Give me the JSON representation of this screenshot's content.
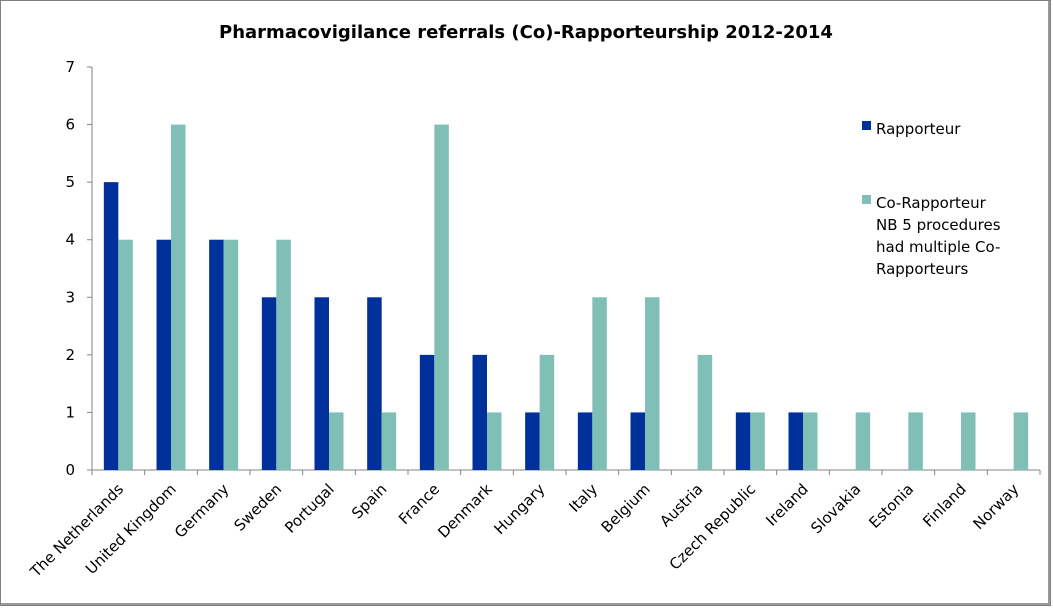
{
  "chart_data": {
    "type": "bar",
    "title": "Pharmacovigilance referrals (Co)-Rapporteurship 2012-2014",
    "xlabel": "",
    "ylabel": "",
    "ylim": [
      0,
      7
    ],
    "yticks": [
      0,
      1,
      2,
      3,
      4,
      5,
      6,
      7
    ],
    "grid": false,
    "legend_position": "right",
    "categories": [
      "The Netherlands",
      "United Kingdom",
      "Germany",
      "Sweden",
      "Portugal",
      "Spain",
      "France",
      "Denmark",
      "Hungary",
      "Italy",
      "Belgium",
      "Austria",
      "Czech Republic",
      "Ireland",
      "Slovakia",
      "Estonia",
      "Finland",
      "Norway"
    ],
    "series": [
      {
        "name": "Rapporteur",
        "color": "#00309a",
        "values": [
          5,
          4,
          4,
          3,
          3,
          3,
          2,
          2,
          1,
          1,
          1,
          0,
          1,
          1,
          0,
          0,
          0,
          0
        ]
      },
      {
        "name": "Co-Rapporteur NB 5 procedures had multiple Co-Rapporteurs",
        "legend_lines": [
          "Co-Rapporteur",
          "NB 5 procedures",
          "had multiple Co-",
          "Rapporteurs"
        ],
        "color": "#7fbfb5",
        "values": [
          4,
          6,
          4,
          4,
          1,
          1,
          6,
          1,
          2,
          3,
          3,
          2,
          1,
          1,
          1,
          1,
          1,
          1
        ]
      }
    ]
  }
}
